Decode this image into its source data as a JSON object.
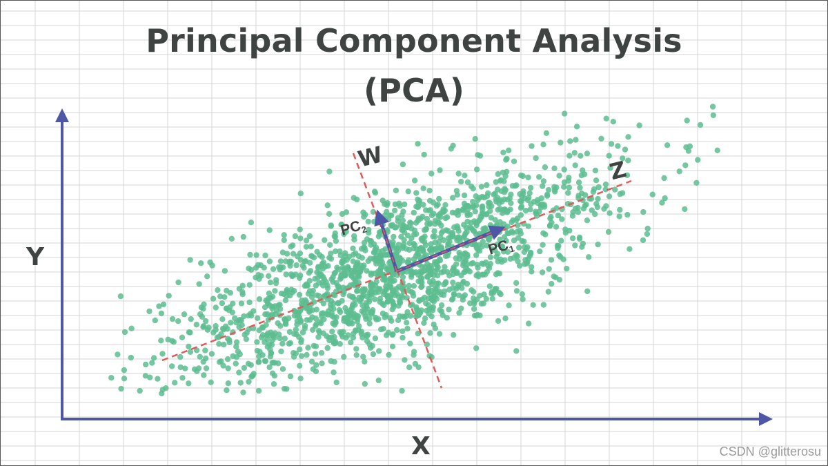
{
  "title": {
    "line1": "Principal Component Analysis",
    "line2": "(PCA)"
  },
  "axes": {
    "x_label": "X",
    "y_label": "Y"
  },
  "directions": {
    "z_label": "Z",
    "w_label": "W"
  },
  "components": {
    "pc1": {
      "base": "PC",
      "subscript": "1"
    },
    "pc2": {
      "base": "PC",
      "subscript": "2"
    }
  },
  "watermark": "CSDN @glitterosu",
  "colors": {
    "background": "#ffffff",
    "grid": "#d4d4d4",
    "text": "#3f4443",
    "axis": "#4e56a6",
    "points": "#5cbd8f",
    "dashed_lines": "#e05a5a",
    "watermark": "#9a9a9a"
  },
  "icons": {
    "axis_arrowheads": "triangle-arrow",
    "component_arrowheads": "triangle-arrow"
  }
}
